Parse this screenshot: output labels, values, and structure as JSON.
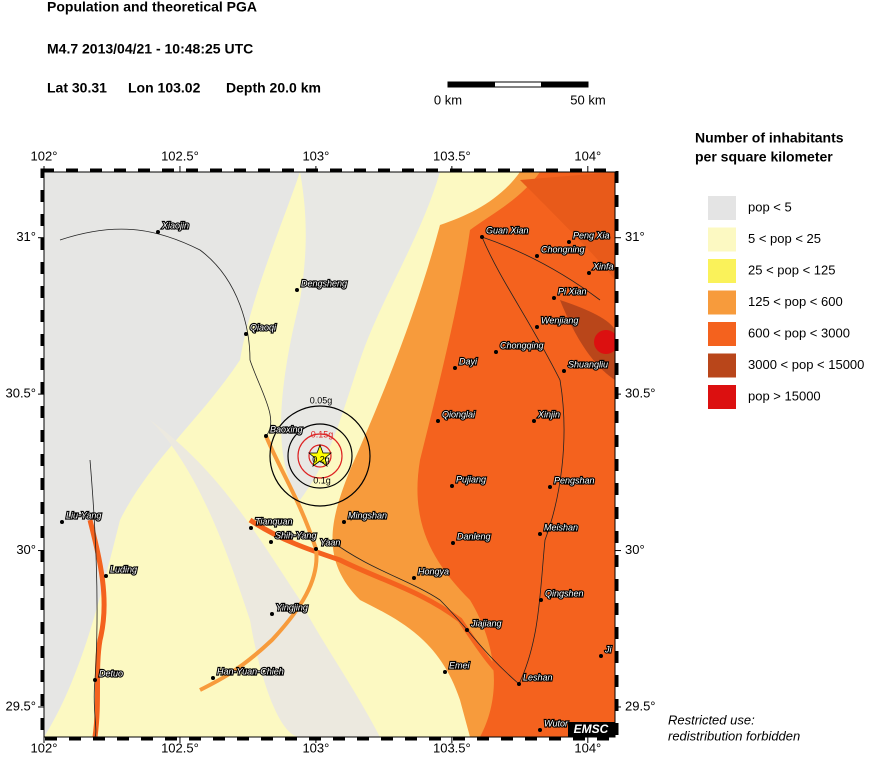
{
  "header": {
    "title": "Population and theoretical PGA",
    "event": "M4.7  2013/04/21 - 10:48:25 UTC",
    "lat": "Lat 30.31",
    "lon": "Lon 103.02",
    "depth": "Depth  20.0 km"
  },
  "scale_bar": {
    "start": "0 km",
    "end": "50 km"
  },
  "map": {
    "xlim": [
      102,
      104.1
    ],
    "ylim": [
      29.404,
      31.21
    ],
    "xticks": [
      {
        "value": 102,
        "label": "102°"
      },
      {
        "value": 102.5,
        "label": "102.5°"
      },
      {
        "value": 103,
        "label": "103°"
      },
      {
        "value": 103.5,
        "label": "103.5°"
      },
      {
        "value": 104,
        "label": "104°"
      }
    ],
    "yticks": [
      {
        "value": 29.5,
        "label": "29.5°"
      },
      {
        "value": 30,
        "label": "30°"
      },
      {
        "value": 30.5,
        "label": "30.5°"
      },
      {
        "value": 31,
        "label": "31°"
      }
    ],
    "pga_labels": [
      "0.05g",
      "0.15g",
      "0.2g",
      "0.1g"
    ],
    "cities": [
      "Xiaojin",
      "Guan Xian",
      "Peng Xia",
      "Chongning",
      "Xinfa",
      "Dengsheng",
      "Pi Xian",
      "Qiaoqi",
      "Wenjiang",
      "Chongqing",
      "Dayi",
      "Shuangliu",
      "Qionglai",
      "Xinjin",
      "Baoxing",
      "Pujiang",
      "Pengshan",
      "Liu-Yang",
      "Mingshan",
      "Tianquan",
      "Meishan",
      "Shih-Yang",
      "Danleng",
      "Yaan",
      "Luding",
      "Hongya",
      "Qingshen",
      "Yingjing",
      "Jiajiang",
      "Ji",
      "Emei",
      "Leshan",
      "Han-Yuan-Chieh",
      "Detuo",
      "Wutor"
    ]
  },
  "legend": {
    "title": [
      "Number of inhabitants",
      "per square kilometer"
    ],
    "items": [
      {
        "label": "pop < 5",
        "color": "#e4e4e4"
      },
      {
        "label": "5 < pop < 25",
        "color": "#fcf9c2"
      },
      {
        "label": "25 < pop < 125",
        "color": "#faf25a"
      },
      {
        "label": "125 < pop < 600",
        "color": "#f79b3c"
      },
      {
        "label": "600 < pop < 3000",
        "color": "#f4621e"
      },
      {
        "label": "3000 < pop < 15000",
        "color": "#b9461a"
      },
      {
        "label": "pop > 15000",
        "color": "#dc1010"
      }
    ]
  },
  "footer": {
    "note": [
      "Restricted use:",
      "redistribution forbidden"
    ],
    "logo": "EMSC"
  }
}
